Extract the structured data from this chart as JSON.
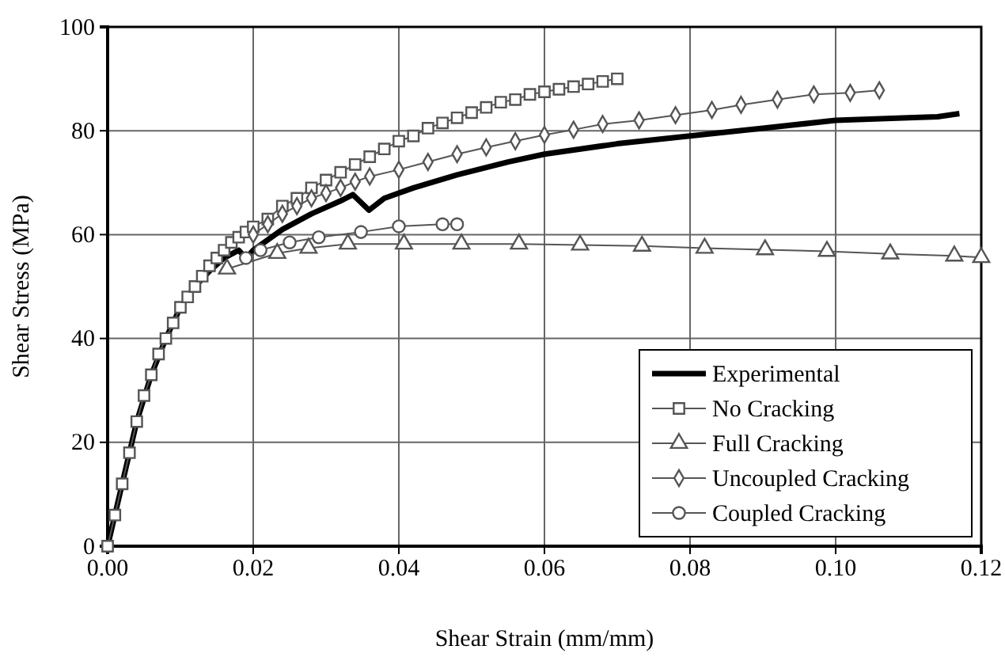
{
  "chart_data": {
    "type": "line",
    "xlabel": "Shear Strain (mm/mm)",
    "ylabel": "Shear Stress (MPa)",
    "xlim": [
      0,
      0.12
    ],
    "xticks": [
      {
        "value": 0,
        "label": "0.00"
      },
      {
        "value": 0.02,
        "label": "0.02"
      },
      {
        "value": 0.04,
        "label": "0.04"
      },
      {
        "value": 0.06,
        "label": "0.06"
      },
      {
        "value": 0.08,
        "label": "0.08"
      },
      {
        "value": 0.1,
        "label": "0.10"
      },
      {
        "value": 0.12,
        "label": "0.12"
      }
    ],
    "ylim": [
      0,
      100
    ],
    "yticks": [
      0,
      20,
      40,
      60,
      80,
      100
    ],
    "grid": true,
    "legend": "bottom right",
    "series": [
      {
        "name": "Experimental",
        "color": "#000000",
        "marker": "none",
        "x": [
          0,
          0.002,
          0.004,
          0.006,
          0.008,
          0.01,
          0.012,
          0.014,
          0.016,
          0.018,
          0.019,
          0.02,
          0.024,
          0.028,
          0.032,
          0.0337,
          0.0359,
          0.038,
          0.042,
          0.048,
          0.055,
          0.06,
          0.07,
          0.08,
          0.09,
          0.1,
          0.11,
          0.114,
          0.117
        ],
        "values": [
          0,
          12,
          24,
          33,
          40,
          46,
          50,
          53,
          55.5,
          57,
          55.5,
          57,
          61,
          64,
          66.5,
          67.7,
          64.7,
          67,
          69,
          71.5,
          74,
          75.5,
          77.5,
          79,
          80.5,
          82,
          82.5,
          82.7,
          83.3
        ]
      },
      {
        "name": "No Cracking",
        "color": "#555555",
        "marker": "square",
        "x": [
          0,
          0.001,
          0.002,
          0.003,
          0.004,
          0.005,
          0.006,
          0.007,
          0.008,
          0.009,
          0.01,
          0.011,
          0.012,
          0.013,
          0.014,
          0.015,
          0.016,
          0.017,
          0.018,
          0.019,
          0.02,
          0.022,
          0.024,
          0.026,
          0.028,
          0.03,
          0.032,
          0.034,
          0.036,
          0.038,
          0.04,
          0.042,
          0.044,
          0.046,
          0.048,
          0.05,
          0.052,
          0.054,
          0.056,
          0.058,
          0.06,
          0.062,
          0.064,
          0.066,
          0.068,
          0.07
        ],
        "values": [
          0,
          6,
          12,
          18,
          24,
          29,
          33,
          37,
          40,
          43,
          46,
          48,
          50,
          52,
          54,
          55.5,
          57,
          58.5,
          59.5,
          60.5,
          61.5,
          63,
          65.5,
          67,
          69,
          70.5,
          72,
          73.5,
          75,
          76.5,
          78,
          79,
          80.5,
          81.5,
          82.5,
          83.5,
          84.5,
          85.5,
          86,
          87,
          87.5,
          88,
          88.5,
          89,
          89.5,
          90
        ]
      },
      {
        "name": "Full Cracking",
        "color": "#555555",
        "marker": "triangle",
        "x": [
          0.0164,
          0.0233,
          0.0276,
          0.033,
          0.0407,
          0.0486,
          0.0565,
          0.0649,
          0.0734,
          0.082,
          0.0903,
          0.0988,
          0.1075,
          0.1163,
          0.12
        ],
        "values": [
          53.4,
          56.4,
          57.4,
          58.2,
          58.2,
          58.2,
          58.2,
          58,
          57.8,
          57.4,
          57.1,
          56.8,
          56.3,
          55.9,
          55.6
        ]
      },
      {
        "name": "Uncoupled Cracking",
        "color": "#555555",
        "marker": "diamond",
        "x": [
          0.02,
          0.022,
          0.024,
          0.026,
          0.028,
          0.03,
          0.032,
          0.034,
          0.036,
          0.04,
          0.044,
          0.048,
          0.052,
          0.056,
          0.06,
          0.064,
          0.068,
          0.073,
          0.078,
          0.083,
          0.087,
          0.092,
          0.097,
          0.102,
          0.106
        ],
        "values": [
          60,
          62,
          64,
          65.5,
          67,
          68,
          69,
          70.2,
          71.2,
          72.5,
          74,
          75.5,
          76.8,
          78,
          79.2,
          80.2,
          81.3,
          82,
          83,
          84,
          85,
          86,
          87,
          87.3,
          87.8
        ]
      },
      {
        "name": "Coupled Cracking",
        "color": "#555555",
        "marker": "circle",
        "x": [
          0.019,
          0.021,
          0.025,
          0.029,
          0.0348,
          0.04,
          0.046,
          0.048
        ],
        "values": [
          55.5,
          57,
          58.5,
          59.5,
          60.5,
          61.6,
          62,
          62
        ]
      }
    ]
  }
}
